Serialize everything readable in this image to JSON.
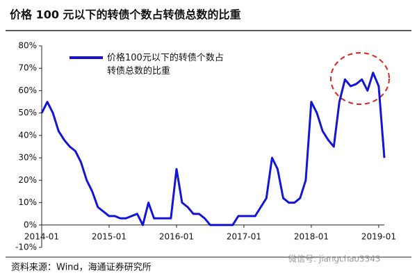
{
  "chart_data": {
    "type": "line",
    "title": "价格 100 元以下的转债个数占转债总数的比重",
    "source": "资料来源：Wind，海通证券研究所",
    "watermark": "微信号: jiangchao3343",
    "x": [
      "2014-01",
      "2014-02",
      "2014-03",
      "2014-04",
      "2014-05",
      "2014-06",
      "2014-07",
      "2014-08",
      "2014-09",
      "2014-10",
      "2014-11",
      "2014-12",
      "2015-01",
      "2015-02",
      "2015-03",
      "2015-04",
      "2015-05",
      "2015-06",
      "2015-07",
      "2015-08",
      "2015-09",
      "2015-10",
      "2015-11",
      "2015-12",
      "2016-01",
      "2016-02",
      "2016-03",
      "2016-04",
      "2016-05",
      "2016-06",
      "2016-07",
      "2016-08",
      "2016-09",
      "2016-10",
      "2016-11",
      "2016-12",
      "2017-01",
      "2017-02",
      "2017-03",
      "2017-04",
      "2017-05",
      "2017-06",
      "2017-07",
      "2017-08",
      "2017-09",
      "2017-10",
      "2017-11",
      "2017-12",
      "2018-01",
      "2018-02",
      "2018-03",
      "2018-04",
      "2018-05",
      "2018-06",
      "2018-07",
      "2018-08",
      "2018-09",
      "2018-10",
      "2018-11",
      "2018-12",
      "2019-01",
      "2019-02"
    ],
    "series": [
      {
        "name": "价格100元以下的转债个数占转债总数的比重",
        "color": "#1414d8",
        "values": [
          50,
          55,
          50,
          42,
          38,
          35,
          33,
          28,
          20,
          15,
          8,
          6,
          4,
          4,
          3,
          3,
          4,
          5,
          0,
          10,
          3,
          3,
          3,
          3,
          25,
          10,
          8,
          5,
          5,
          3,
          0,
          0,
          0,
          0,
          0,
          4,
          4,
          4,
          4,
          8,
          12,
          30,
          25,
          12,
          10,
          10,
          12,
          20,
          55,
          50,
          42,
          38,
          35,
          55,
          65,
          62,
          63,
          65,
          60,
          68,
          62,
          30
        ]
      }
    ],
    "xlim": [
      "2014-01",
      "2019-02"
    ],
    "xticks": [
      "2014-01",
      "2015-01",
      "2016-01",
      "2017-01",
      "2018-01",
      "2019-01"
    ],
    "ylim": [
      -10,
      80
    ],
    "yticks": [
      {
        "value": -10,
        "label": "-10%"
      },
      {
        "value": 0,
        "label": "0%"
      },
      {
        "value": 10,
        "label": "10%"
      },
      {
        "value": 20,
        "label": "20%"
      },
      {
        "value": 30,
        "label": "30%"
      },
      {
        "value": 40,
        "label": "40%"
      },
      {
        "value": 50,
        "label": "50%"
      },
      {
        "value": 60,
        "label": "60%"
      },
      {
        "value": 70,
        "label": "70%"
      },
      {
        "value": 80,
        "label": "80%"
      }
    ],
    "grid": false,
    "legend": "top-left"
  }
}
